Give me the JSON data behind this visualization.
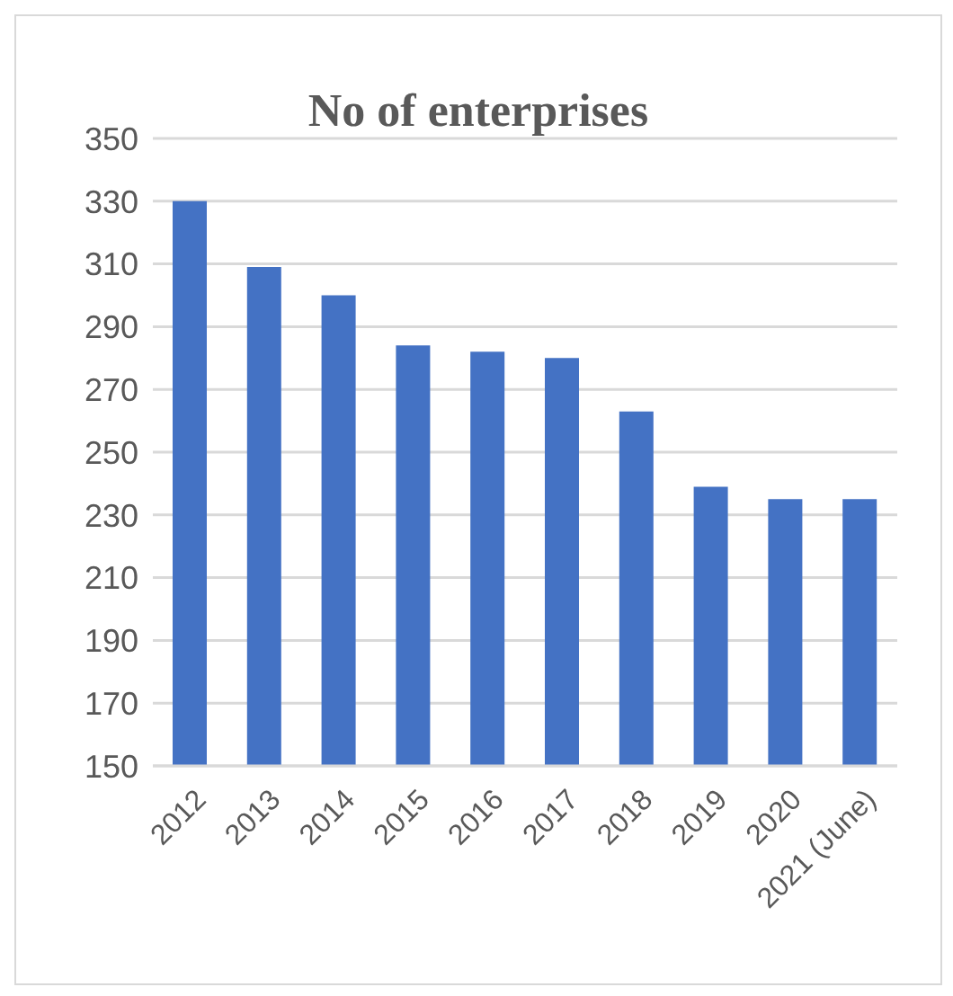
{
  "chart_data": {
    "type": "bar",
    "title": "No of enterprises",
    "categories": [
      "2012",
      "2013",
      "2014",
      "2015",
      "2016",
      "2017",
      "2018",
      "2019",
      "2020",
      "2021 (June)"
    ],
    "values": [
      330,
      309,
      300,
      284,
      282,
      280,
      263,
      239,
      235,
      235
    ],
    "color": "#4472c4",
    "ylim": [
      150,
      350
    ],
    "yticks": [
      150,
      170,
      190,
      210,
      230,
      250,
      270,
      290,
      310,
      330,
      350
    ],
    "grid": "y"
  }
}
